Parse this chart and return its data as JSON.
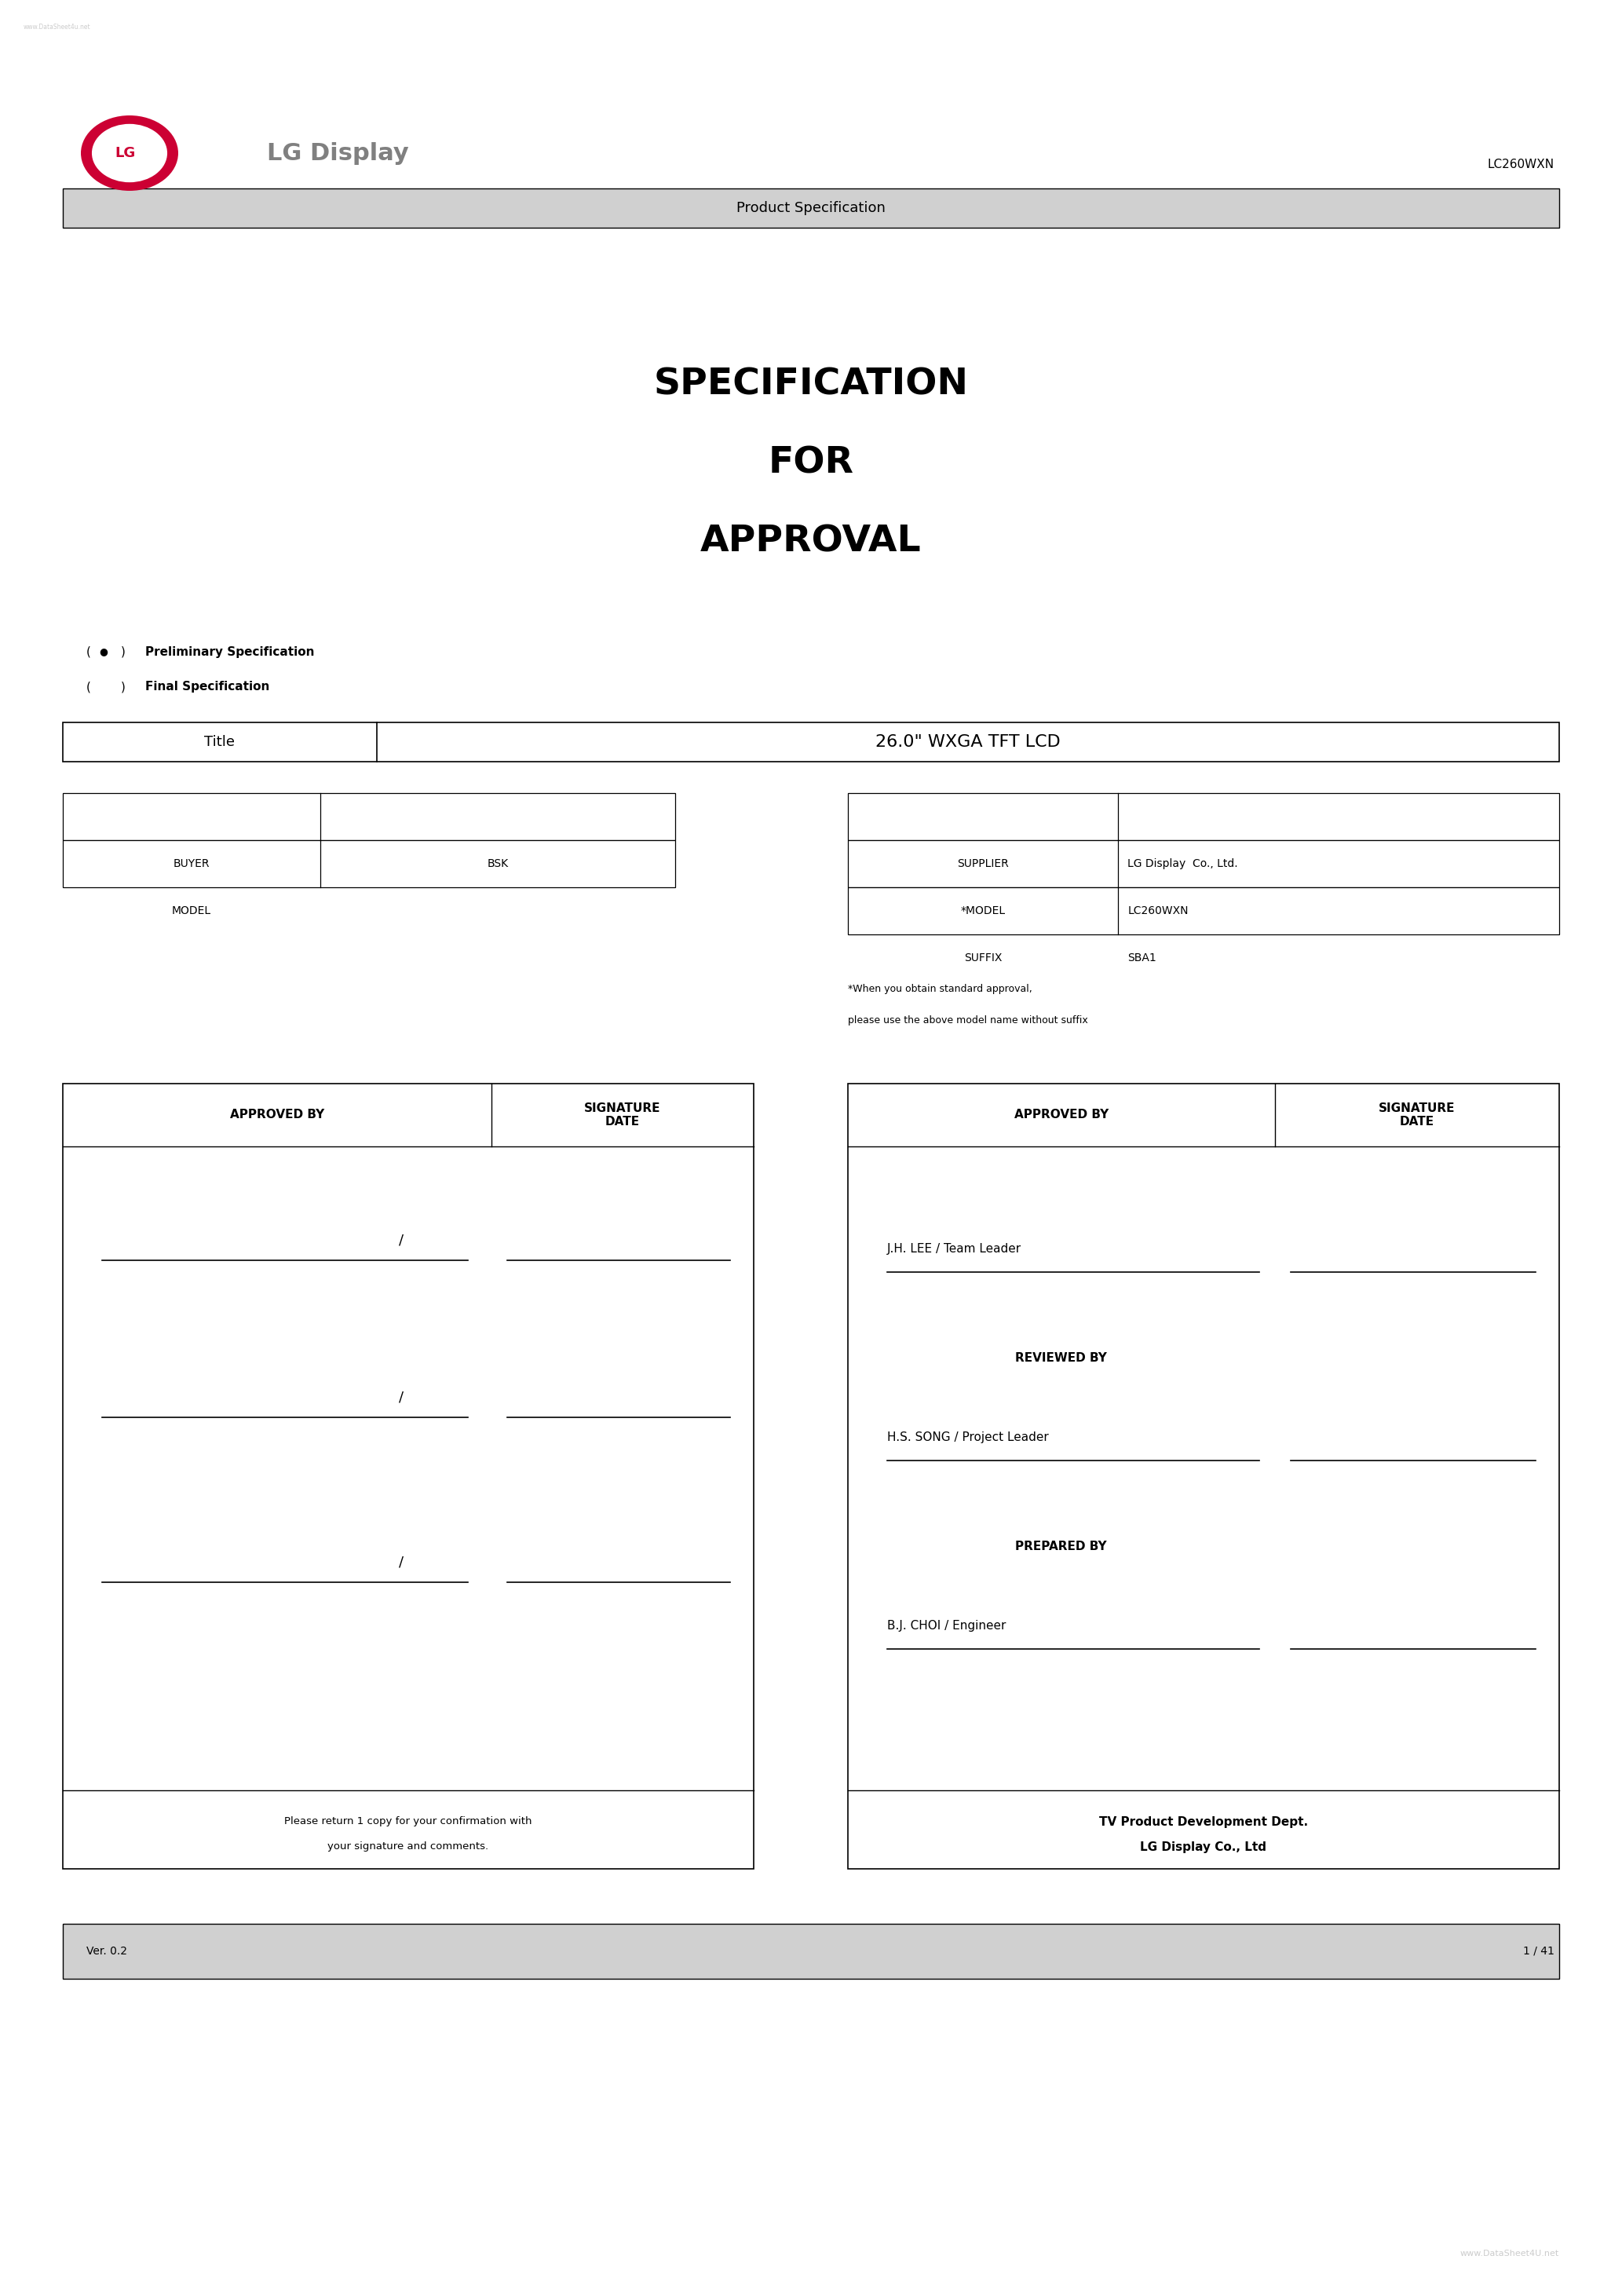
{
  "bg_color": "#ffffff",
  "page_width": 20.66,
  "page_height": 29.24,
  "watermark_top": "www.DataSheet4u.net",
  "watermark_bottom": "www.DataSheet4U.net",
  "watermark_color": "#cccccc",
  "logo_text": "LG Display",
  "logo_circle_color": "#cc0033",
  "logo_text_color": "#808080",
  "model_number": "LC260WXN",
  "product_spec_bar_text": "Product Specification",
  "product_spec_bar_color": "#d0d0d0",
  "main_title_lines": [
    "SPECIFICATION",
    "FOR",
    "APPROVAL"
  ],
  "main_title_fontsize": 34,
  "bullet_filled": "●",
  "prelim_spec_label": "Preliminary Specification",
  "final_spec_label": "Final Specification",
  "title_box_label": "Title",
  "title_box_value": "26.0\" WXGA TFT LCD",
  "buyer_label": "BUYER",
  "buyer_value": "BSK",
  "model_label": "MODEL",
  "model_value": "",
  "supplier_label": "SUPPLIER",
  "supplier_value": "LG Display  Co., Ltd.",
  "model_label2": "*MODEL",
  "model_value2": "LC260WXN",
  "suffix_label": "SUFFIX",
  "suffix_value": "SBA1",
  "footnote_line1": "*When you obtain standard approval,",
  "footnote_line2": "please use the above model name without suffix",
  "approved_by_label": "APPROVED BY",
  "signature_date_label": "SIGNATURE\nDATE",
  "right_approved_by": "J.H. LEE / Team Leader",
  "right_reviewed_by_label": "REVIEWED BY",
  "right_reviewed_by": "H.S. SONG / Project Leader",
  "right_prepared_by_label": "PREPARED BY",
  "right_prepared_by": "B.J. CHOI / Engineer",
  "left_footer_note_line1": "Please return 1 copy for your confirmation with",
  "left_footer_note_line2": "your signature and comments.",
  "right_footer_dept_line1": "TV Product Development Dept.",
  "right_footer_dept_line2": "LG Display Co., Ltd",
  "version_label": "Ver. 0.2",
  "page_label": "1 / 41",
  "footer_bar_color": "#d0d0d0",
  "text_color": "#000000",
  "border_color": "#000000"
}
